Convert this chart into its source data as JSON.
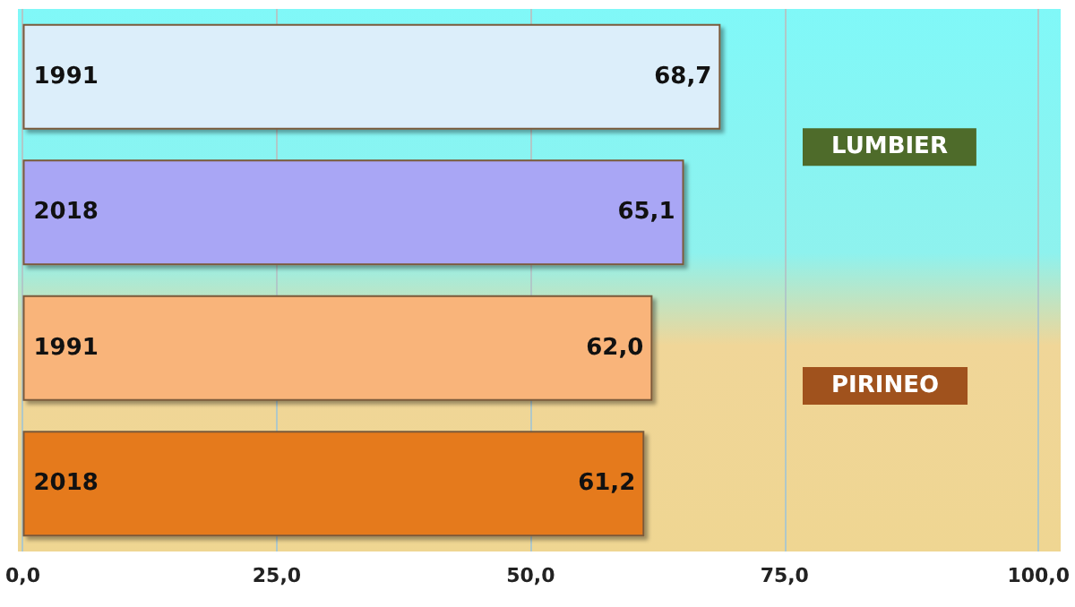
{
  "chart_data": {
    "type": "bar",
    "orientation": "horizontal",
    "categories": [
      "1991",
      "2018",
      "1991",
      "2018"
    ],
    "values": [
      68.7,
      65.1,
      62.0,
      61.2
    ],
    "colors": [
      "#dceefa",
      "#a9a6f5",
      "#f9b47a",
      "#e57a1c"
    ],
    "value_labels": [
      "68,7",
      "65,1",
      "62,0",
      "61,2"
    ],
    "xlim": [
      0,
      100
    ],
    "xticks": [
      {
        "value": 0,
        "label": "0,0"
      },
      {
        "value": 25,
        "label": "25,0"
      },
      {
        "value": 50,
        "label": "50,0"
      },
      {
        "value": 75,
        "label": "75,0"
      },
      {
        "value": 100,
        "label": "100,0"
      }
    ],
    "grid": "x",
    "annotations": [
      "LUMBIER",
      "PIRINEO"
    ]
  }
}
